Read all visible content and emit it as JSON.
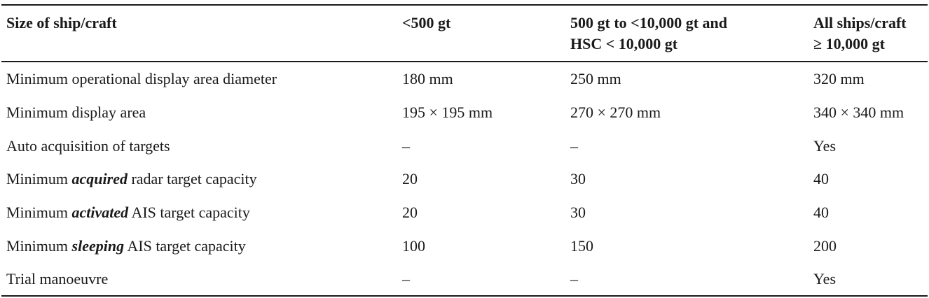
{
  "table": {
    "headers": [
      "Size of ship/craft",
      "<500 gt",
      "500 gt to <10,000 gt and\nHSC < 10,000 gt",
      "All ships/craft\n≥ 10,000 gt"
    ],
    "rows": [
      {
        "label_pre": "Minimum operational display area diameter",
        "label_emph": "",
        "label_post": "",
        "values": [
          "180 mm",
          "250 mm",
          "320 mm"
        ]
      },
      {
        "label_pre": "Minimum display area",
        "label_emph": "",
        "label_post": "",
        "values": [
          "195 × 195 mm",
          "270 × 270 mm",
          "340 × 340 mm"
        ]
      },
      {
        "label_pre": "Auto acquisition of targets",
        "label_emph": "",
        "label_post": "",
        "values": [
          "–",
          "–",
          "Yes"
        ]
      },
      {
        "label_pre": "Minimum ",
        "label_emph": "acquired",
        "label_post": " radar target capacity",
        "values": [
          "20",
          "30",
          "40"
        ]
      },
      {
        "label_pre": "Minimum ",
        "label_emph": "activated",
        "label_post": " AIS target capacity",
        "values": [
          "20",
          "30",
          "40"
        ]
      },
      {
        "label_pre": "Minimum ",
        "label_emph": "sleeping",
        "label_post": " AIS target capacity",
        "values": [
          "100",
          "150",
          "200"
        ]
      },
      {
        "label_pre": "Trial manoeuvre",
        "label_emph": "",
        "label_post": "",
        "values": [
          "–",
          "–",
          "Yes"
        ]
      }
    ]
  }
}
